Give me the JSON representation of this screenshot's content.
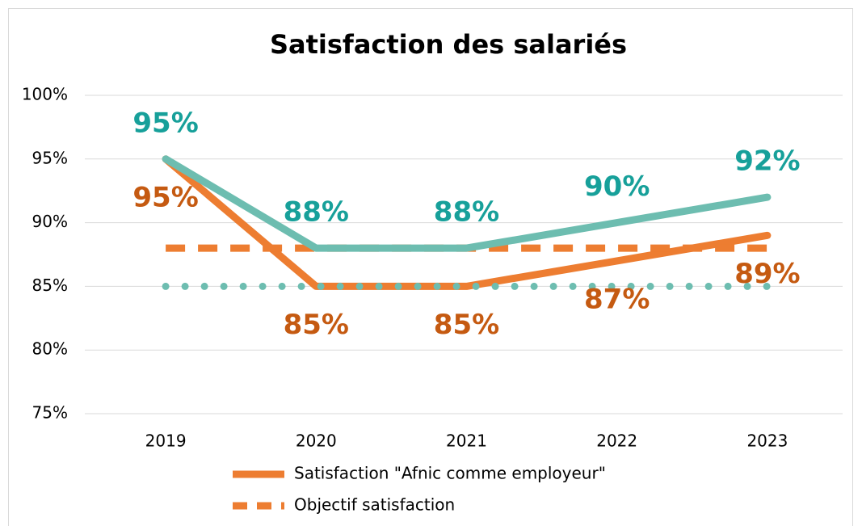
{
  "chart_data": {
    "type": "line",
    "title": "Satisfaction des salariés",
    "categories": [
      "2019",
      "2020",
      "2021",
      "2022",
      "2023"
    ],
    "series": [
      {
        "name": "Satisfaction \"Afnic comme employeur\"",
        "color": "#ed7d31",
        "style": "solid",
        "label_color": "#c55a11",
        "label_position": "below",
        "values": [
          95,
          85,
          85,
          87,
          89
        ],
        "value_labels": [
          "95%",
          "85%",
          "85%",
          "87%",
          "89%"
        ]
      },
      {
        "name": "Objectif satisfaction",
        "color": "#ed7d31",
        "style": "dashed",
        "values": [
          88,
          88,
          88,
          88,
          88
        ]
      },
      {
        "color": "#6dbdb0",
        "style": "solid",
        "label_color": "#17a09a",
        "label_position": "above",
        "values": [
          95,
          88,
          88,
          90,
          92
        ],
        "value_labels": [
          "95%",
          "88%",
          "88%",
          "90%",
          "92%"
        ]
      },
      {
        "color": "#6dbdb0",
        "style": "dotted",
        "values": [
          85,
          85,
          85,
          85,
          85
        ]
      }
    ],
    "ylim": [
      75,
      100
    ],
    "yticks": [
      {
        "value": 75,
        "label": "75%"
      },
      {
        "value": 80,
        "label": "80%"
      },
      {
        "value": 85,
        "label": "85%"
      },
      {
        "value": 90,
        "label": "90%"
      },
      {
        "value": 95,
        "label": "95%"
      },
      {
        "value": 100,
        "label": "100%"
      }
    ],
    "grid": true
  }
}
